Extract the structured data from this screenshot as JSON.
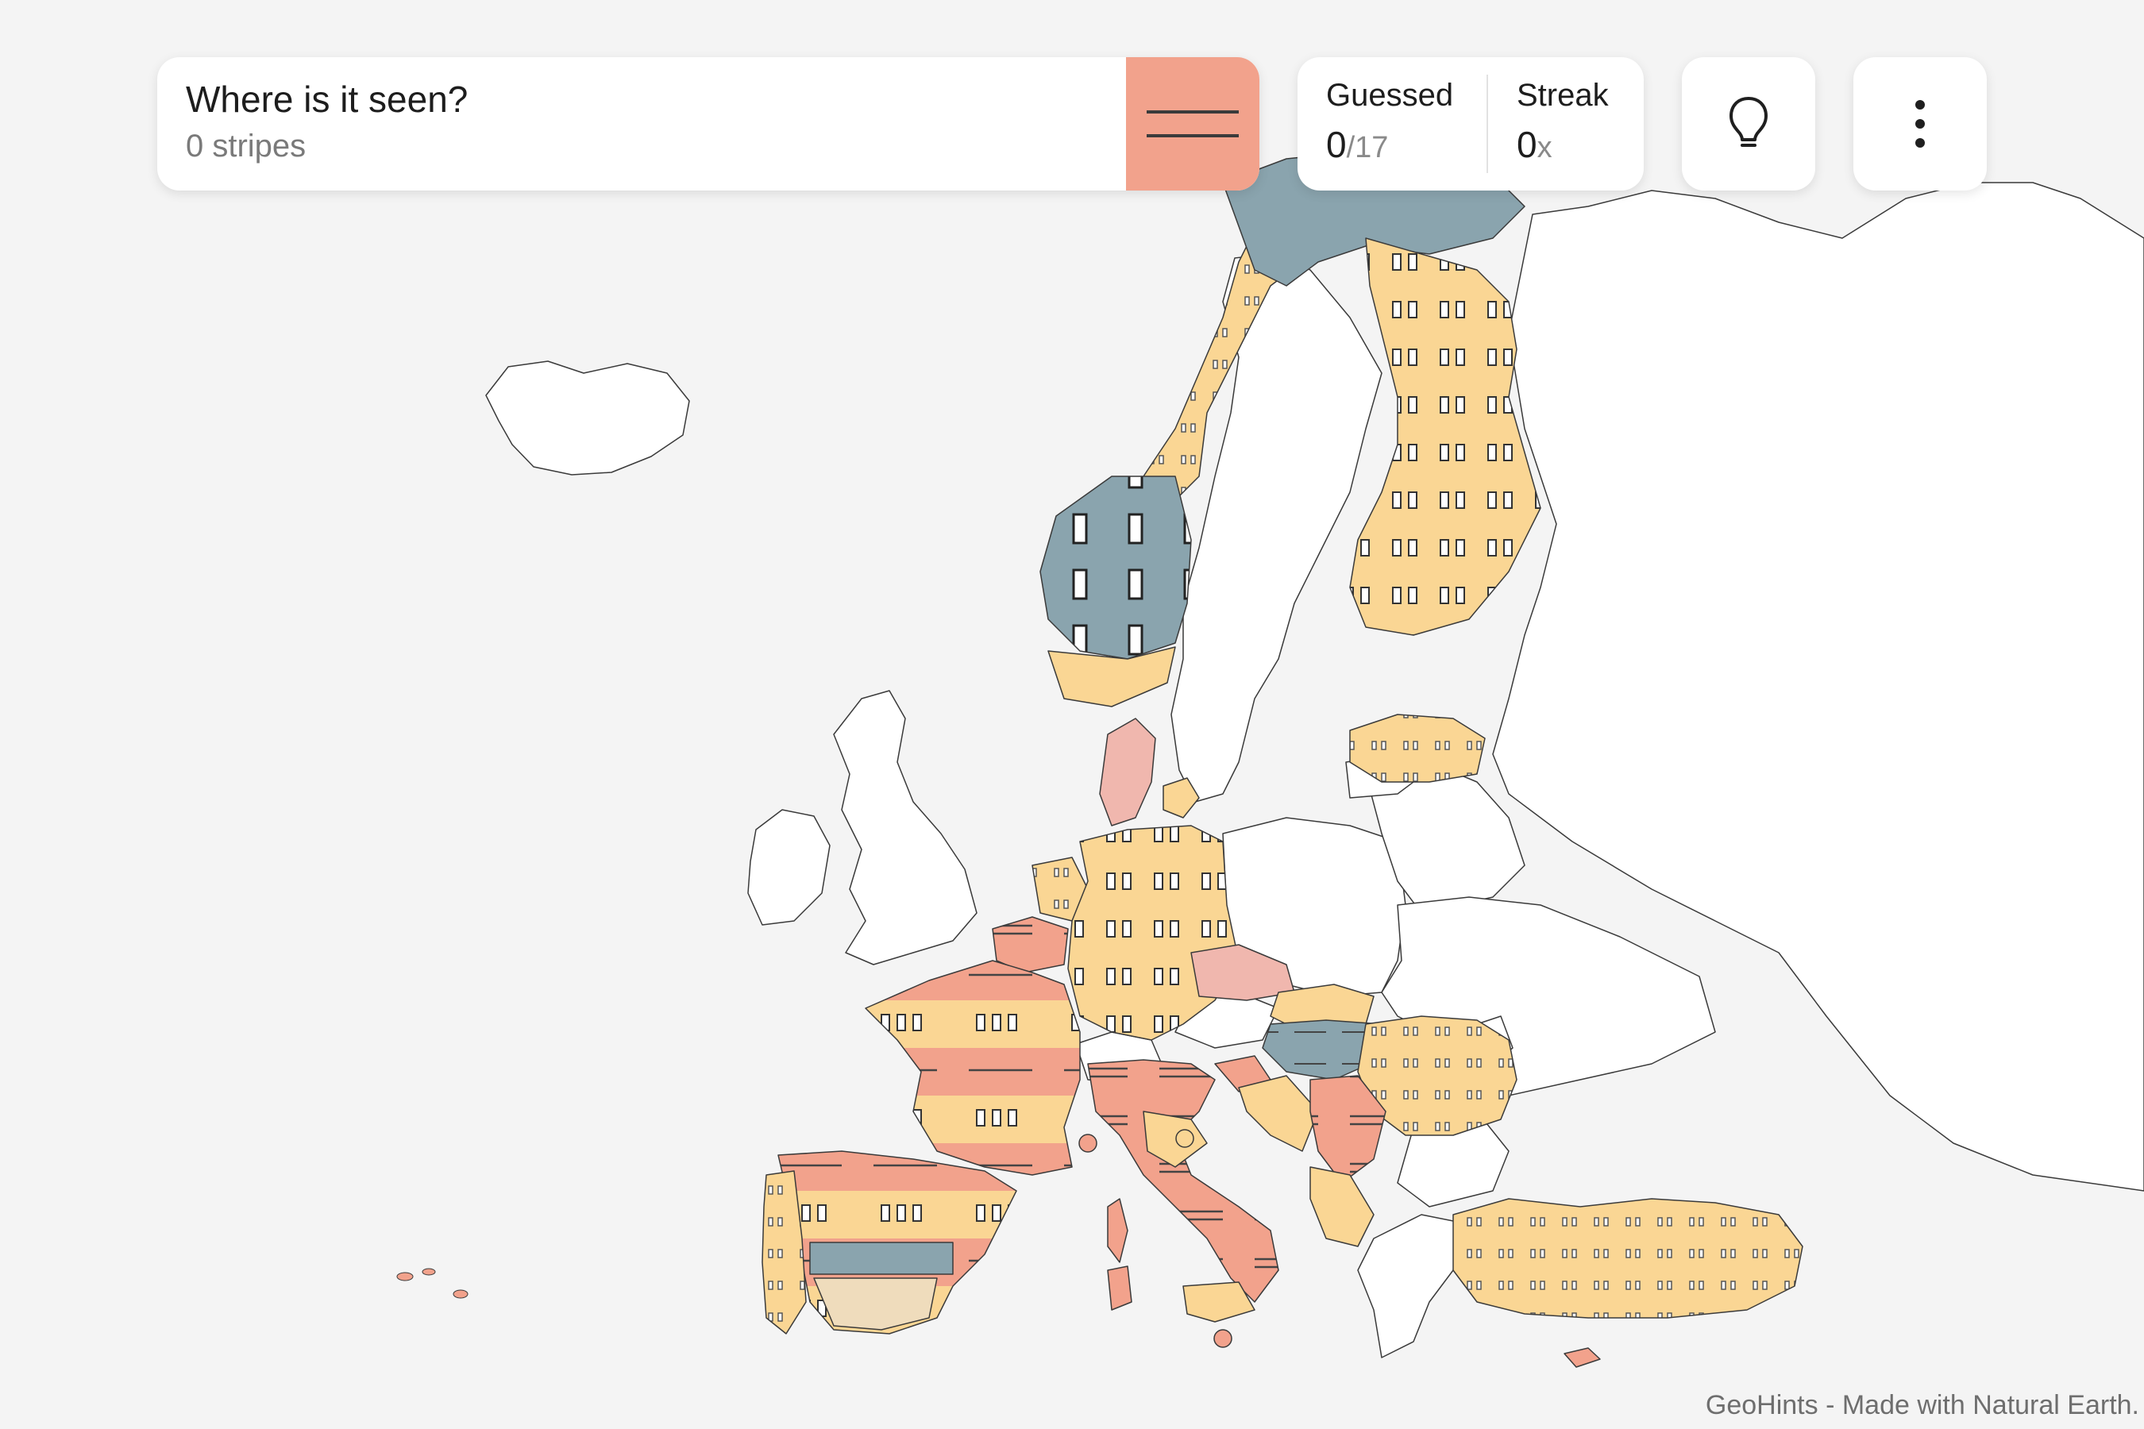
{
  "question": {
    "title": "Where is it seen?",
    "subtitle": "0 stripes",
    "swatch_color": "#f2a28c"
  },
  "score": {
    "guessed_label": "Guessed",
    "guessed_value": "0",
    "guessed_total": "/17",
    "streak_label": "Streak",
    "streak_value": "0",
    "streak_suffix": "x"
  },
  "icons": {
    "hint": "lightbulb-icon",
    "menu": "more-vertical-icon"
  },
  "attribution": "GeoHints - Made with Natural Earth.",
  "map_colors": {
    "ocean": "#f4f4f4",
    "land": "#ffffff",
    "yellow": "#fad694",
    "red": "#f2a28c",
    "blue": "#8aa4ae",
    "pink": "#f0b7ae",
    "sand": "#efdcbc"
  }
}
